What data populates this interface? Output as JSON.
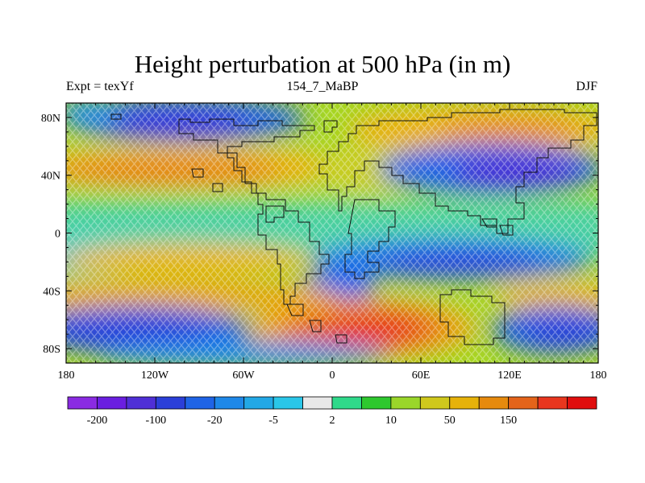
{
  "title": "Height perturbation at 500 hPa (in m)",
  "subtitle_left": "Expt = texYf",
  "subtitle_center": "154_7_MaBP",
  "subtitle_right": "DJF",
  "map": {
    "lon_range": [
      -180,
      180
    ],
    "lat_range": [
      -90,
      90
    ],
    "lon_ticks": [
      {
        "value": -180,
        "label": "180"
      },
      {
        "value": -120,
        "label": "120W"
      },
      {
        "value": -60,
        "label": "60W"
      },
      {
        "value": 0,
        "label": "0"
      },
      {
        "value": 60,
        "label": "60E"
      },
      {
        "value": 120,
        "label": "120E"
      },
      {
        "value": 180,
        "label": "180"
      }
    ],
    "lat_ticks": [
      {
        "value": 80,
        "label": "80N"
      },
      {
        "value": 40,
        "label": "40N"
      },
      {
        "value": 0,
        "label": "0"
      },
      {
        "value": -40,
        "label": "40S"
      },
      {
        "value": -80,
        "label": "80S"
      }
    ],
    "fill_pattern": "cross-hatch"
  },
  "colorbar": {
    "colors": [
      "#8a2be2",
      "#6a1ee0",
      "#4f2fd6",
      "#2b3fd8",
      "#1f64e6",
      "#1e88e8",
      "#22a8e6",
      "#2ac6e8",
      "#e8e8e8",
      "#2fd98a",
      "#2ec82e",
      "#9ad62a",
      "#cfc81c",
      "#e6b20a",
      "#e68a0e",
      "#e4641a",
      "#e8361e",
      "#e00e0e"
    ],
    "labels": [
      {
        "boundary": 1,
        "text": "-200"
      },
      {
        "boundary": 3,
        "text": "-100"
      },
      {
        "boundary": 5,
        "text": "-20"
      },
      {
        "boundary": 7,
        "text": "-5"
      },
      {
        "boundary": 9,
        "text": "2"
      },
      {
        "boundary": 11,
        "text": "10"
      },
      {
        "boundary": 13,
        "text": "50"
      },
      {
        "boundary": 15,
        "text": "150"
      }
    ]
  }
}
